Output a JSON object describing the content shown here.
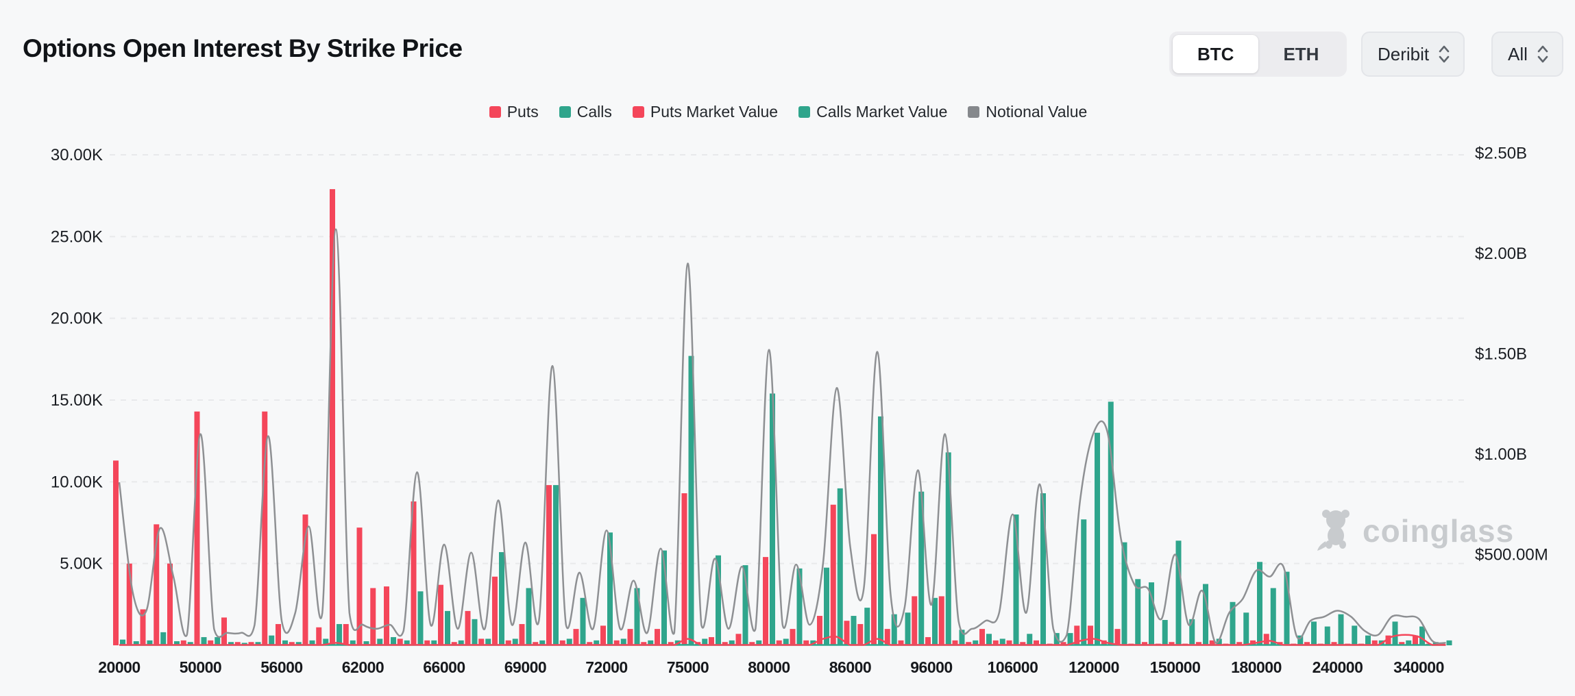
{
  "header": {
    "title": "Options Open Interest By Strike Price",
    "asset_toggle": {
      "options": [
        "BTC",
        "ETH"
      ],
      "selected": "BTC"
    },
    "exchange_select": {
      "value": "Deribit"
    },
    "expiry_select": {
      "value": "All"
    }
  },
  "watermark": {
    "label": "coinglass"
  },
  "colors": {
    "puts": "#f4465a",
    "calls": "#2fa58c",
    "notional": "#8e9093",
    "legend_notional_swatch": "#85888c",
    "grid": "#e8e9eb",
    "background": "#f7f8f9"
  },
  "chart_data": {
    "type": "bar",
    "title": "Options Open Interest By Strike Price",
    "x_axis": {
      "tick_labels": [
        "20000",
        "50000",
        "56000",
        "62000",
        "66000",
        "69000",
        "72000",
        "75000",
        "80000",
        "86000",
        "96000",
        "106000",
        "120000",
        "150000",
        "180000",
        "240000",
        "340000"
      ],
      "label_every_n_bars": 6,
      "total_bars": 99
    },
    "left_axis": {
      "tick_labels": [
        "30.00K",
        "25.00K",
        "20.00K",
        "15.00K",
        "10.00K",
        "5.00K"
      ],
      "range_k": [
        0,
        30
      ],
      "unit": "contracts (K)"
    },
    "right_axis": {
      "tick_labels": [
        "$2.50B",
        "$2.00B",
        "$1.50B",
        "$1.00B",
        "$500.00M"
      ],
      "range_usd_b": [
        0,
        2.5
      ]
    },
    "legend": [
      "Puts",
      "Calls",
      "Puts Market Value",
      "Calls Market Value",
      "Notional Value"
    ],
    "grid": "dashed-horizontal",
    "legend_position": "top-center",
    "series": [
      {
        "name": "Puts",
        "type": "bar",
        "axis": "left",
        "unit": "K",
        "color": "#f4465a",
        "values": [
          11.3,
          5.0,
          2.2,
          7.4,
          5.0,
          0.3,
          14.3,
          0.3,
          1.7,
          0.2,
          0.2,
          14.3,
          1.3,
          0.2,
          8.0,
          1.1,
          27.9,
          1.3,
          7.2,
          3.5,
          3.6,
          0.4,
          8.8,
          0.3,
          3.7,
          0.2,
          2.1,
          0.4,
          4.2,
          0.3,
          1.3,
          0.2,
          9.8,
          0.3,
          1.0,
          0.2,
          1.2,
          0.3,
          1.0,
          0.2,
          1.0,
          0.2,
          9.3,
          0.2,
          0.5,
          0.2,
          0.7,
          0.2,
          5.4,
          0.3,
          1.0,
          0.3,
          1.8,
          8.6,
          1.5,
          1.3,
          6.8,
          1.0,
          0.3,
          3.0,
          0.5,
          3.0,
          0.3,
          0.2,
          1.0,
          0.3,
          0.3,
          0.2,
          0.3,
          0.1,
          0.2,
          1.2,
          1.2,
          0.3,
          1.0,
          0.1,
          0.2,
          0.1,
          0.2,
          0.1,
          0.2,
          0.3,
          0.1,
          0.2,
          0.3,
          0.7,
          0.2,
          0.1,
          0.2,
          0.1,
          0.2,
          0.1,
          0.1,
          0.3,
          0.6,
          0.2,
          0.6,
          0.1,
          0.1
        ]
      },
      {
        "name": "Calls",
        "type": "bar",
        "axis": "left",
        "unit": "K",
        "color": "#2fa58c",
        "values": [
          0.35,
          0.25,
          0.3,
          0.8,
          0.25,
          0.2,
          0.5,
          0.5,
          0.2,
          0.15,
          0.2,
          0.6,
          0.3,
          0.2,
          0.3,
          0.4,
          1.3,
          0.3,
          0.25,
          0.4,
          0.5,
          0.3,
          3.3,
          0.3,
          2.1,
          0.3,
          1.6,
          0.4,
          5.7,
          0.4,
          3.5,
          0.3,
          9.8,
          0.4,
          2.9,
          0.3,
          6.9,
          0.4,
          3.5,
          0.3,
          5.8,
          0.3,
          17.7,
          0.4,
          5.5,
          0.3,
          4.9,
          0.3,
          15.4,
          0.4,
          4.7,
          0.3,
          4.75,
          9.6,
          1.8,
          2.3,
          14.0,
          1.9,
          2.0,
          9.4,
          2.9,
          11.8,
          0.95,
          0.3,
          0.7,
          0.4,
          8.0,
          0.7,
          9.3,
          0.75,
          0.75,
          7.7,
          13.0,
          14.9,
          6.3,
          4.05,
          3.85,
          1.55,
          6.4,
          1.6,
          3.75,
          0.4,
          2.65,
          2.0,
          5.1,
          3.5,
          4.5,
          0.6,
          1.45,
          1.15,
          1.9,
          1.2,
          0.6,
          0.3,
          1.45,
          0.3,
          1.15,
          0.2,
          0.3
        ]
      },
      {
        "name": "Puts Market Value",
        "type": "line",
        "axis": "right",
        "unit": "$B",
        "color": "#f4465a",
        "values": [
          0.04,
          0.02,
          0.02,
          0.03,
          0.02,
          0.01,
          0.03,
          0.01,
          0.01,
          0.01,
          0.01,
          0.03,
          0.01,
          0.01,
          0.03,
          0.01,
          0.06,
          0.02,
          0.03,
          0.02,
          0.02,
          0.01,
          0.05,
          0.01,
          0.03,
          0.01,
          0.02,
          0.01,
          0.03,
          0.01,
          0.02,
          0.01,
          0.04,
          0.01,
          0.01,
          0.01,
          0.02,
          0.01,
          0.02,
          0.01,
          0.02,
          0.01,
          0.08,
          0.01,
          0.02,
          0.01,
          0.02,
          0.01,
          0.05,
          0.01,
          0.02,
          0.01,
          0.08,
          0.09,
          0.03,
          0.03,
          0.08,
          0.02,
          0.01,
          0.04,
          0.01,
          0.04,
          0.01,
          0.01,
          0.02,
          0.01,
          0.02,
          0.01,
          0.02,
          0.01,
          0.01,
          0.07,
          0.08,
          0.06,
          0.05,
          0.01,
          0.01,
          0.01,
          0.02,
          0.01,
          0.01,
          0.02,
          0.01,
          0.01,
          0.06,
          0.07,
          0.05,
          0.01,
          0.01,
          0.01,
          0.02,
          0.01,
          0.01,
          0.04,
          0.09,
          0.1,
          0.09,
          0.02,
          0.01
        ]
      },
      {
        "name": "Calls Market Value",
        "type": "line",
        "axis": "right",
        "unit": "$B",
        "color": "#2fa58c",
        "values": [
          0.01,
          0.01,
          0.01,
          0.03,
          0.01,
          0.01,
          0.02,
          0.01,
          0.01,
          0.01,
          0.01,
          0.02,
          0.01,
          0.01,
          0.01,
          0.01,
          0.03,
          0.01,
          0.01,
          0.01,
          0.01,
          0.01,
          0.03,
          0.01,
          0.02,
          0.01,
          0.01,
          0.01,
          0.03,
          0.01,
          0.02,
          0.01,
          0.04,
          0.01,
          0.01,
          0.01,
          0.02,
          0.01,
          0.01,
          0.01,
          0.02,
          0.01,
          0.05,
          0.01,
          0.02,
          0.01,
          0.02,
          0.01,
          0.04,
          0.01,
          0.02,
          0.01,
          0.02,
          0.04,
          0.01,
          0.01,
          0.04,
          0.01,
          0.01,
          0.03,
          0.01,
          0.03,
          0.01,
          0.01,
          0.01,
          0.01,
          0.02,
          0.01,
          0.03,
          0.01,
          0.01,
          0.02,
          0.04,
          0.04,
          0.02,
          0.01,
          0.01,
          0.01,
          0.02,
          0.01,
          0.01,
          0.01,
          0.01,
          0.01,
          0.02,
          0.02,
          0.02,
          0.01,
          0.01,
          0.01,
          0.01,
          0.01,
          0.01,
          0.01,
          0.01,
          0.01,
          0.01,
          0.01,
          0.01
        ]
      },
      {
        "name": "Notional Value",
        "type": "line",
        "axis": "right",
        "unit": "$B",
        "color": "#8e9093",
        "values": [
          0.86,
          0.31,
          0.22,
          0.63,
          0.39,
          0.1,
          1.1,
          0.13,
          0.11,
          0.11,
          0.15,
          1.09,
          0.17,
          0.21,
          0.64,
          0.21,
          2.12,
          0.21,
          0.15,
          0.13,
          0.15,
          0.12,
          0.91,
          0.15,
          0.55,
          0.13,
          0.51,
          0.13,
          0.77,
          0.15,
          0.56,
          0.17,
          1.44,
          0.15,
          0.41,
          0.13,
          0.62,
          0.13,
          0.37,
          0.11,
          0.53,
          0.11,
          1.95,
          0.15,
          0.48,
          0.13,
          0.44,
          0.13,
          1.52,
          0.15,
          0.45,
          0.15,
          0.46,
          1.33,
          0.54,
          0.33,
          1.51,
          0.29,
          0.23,
          0.92,
          0.25,
          1.1,
          0.17,
          0.13,
          0.17,
          0.21,
          0.7,
          0.21,
          0.85,
          0.13,
          0.1,
          0.78,
          1.11,
          1.11,
          0.58,
          0.35,
          0.33,
          0.18,
          0.5,
          0.15,
          0.32,
          0.06,
          0.21,
          0.28,
          0.42,
          0.39,
          0.44,
          0.09,
          0.17,
          0.19,
          0.22,
          0.19,
          0.12,
          0.1,
          0.19,
          0.19,
          0.18,
          0.07,
          0.06
        ]
      }
    ]
  }
}
